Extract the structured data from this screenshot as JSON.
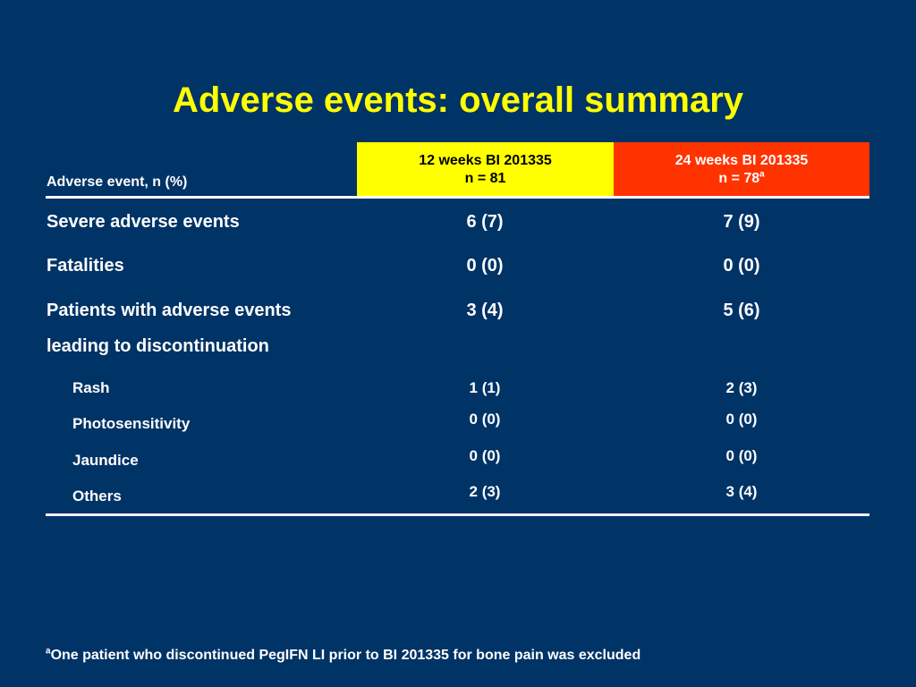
{
  "title": "Adverse events: overall summary",
  "table": {
    "header": {
      "row_label": "Adverse event, n (%)",
      "col1_line1": "12 weeks BI 201335",
      "col1_line2": "n = 81",
      "col2_line1": "24 weeks BI 201335",
      "col2_line2": "n = 78",
      "col2_sup": "a"
    },
    "rows": [
      {
        "label": "Severe adverse events",
        "col1": "6 (7)",
        "col2": "7 (9)"
      },
      {
        "label": "Fatalities",
        "col1": "0 (0)",
        "col2": "0 (0)"
      },
      {
        "label": "Patients with adverse events",
        "label_cont": "leading to discontinuation",
        "col1": "3 (4)",
        "col2": "5 (6)"
      },
      {
        "label": "Rash",
        "col1": "1 (1)",
        "col2": "2 (3)"
      },
      {
        "label": "Photosensitivity",
        "col1": "0 (0)",
        "col2": "0 (0)"
      },
      {
        "label": "Jaundice",
        "col1": "0 (0)",
        "col2": "0 (0)"
      },
      {
        "label": "Others",
        "col1": "2 (3)",
        "col2": "3 (4)"
      }
    ]
  },
  "footnote": {
    "marker": "a",
    "text": "One patient who discontinued PegIFN LI prior to BI 201335 for bone pain was excluded"
  },
  "colors": {
    "background": "#003366",
    "title": "#ffff00",
    "col1_header": "#ffff00",
    "col2_header": "#ff3300"
  }
}
